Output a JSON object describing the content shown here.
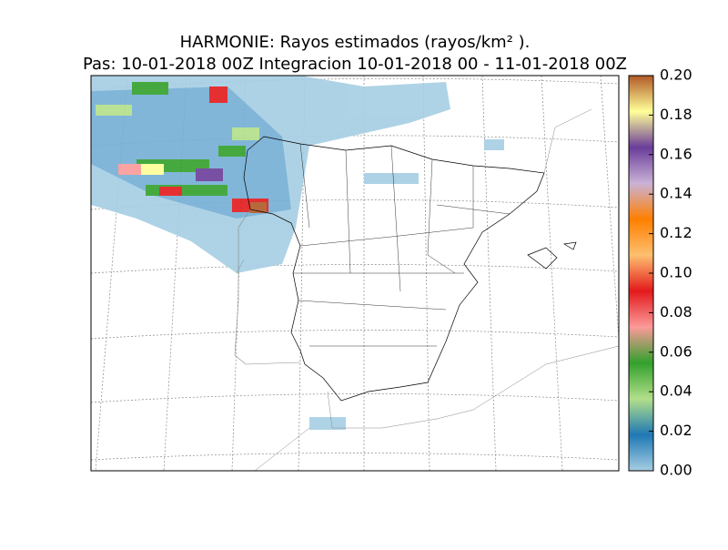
{
  "title": [
    "HARMONIE: Rayos estimados  (rayos/km² ).",
    "Pas: 10-01-2018 00Z Integracion 10-01-2018 00 - 11-01-2018 00Z"
  ],
  "colorbar": {
    "lim": [
      0,
      0.2
    ],
    "ticks": [
      {
        "value": 0,
        "label": "0.00"
      },
      0.02,
      0.04,
      0.06,
      0.08,
      {
        "value": 0.1,
        "label": "0.10"
      },
      0.12,
      0.14,
      0.16,
      0.18,
      {
        "value": 0.2,
        "label": "0.20"
      }
    ],
    "colors": [
      "#a6cee3",
      "#1f78b4",
      "#b2df8a",
      "#33a02c",
      "#fb9a99",
      "#e31a1c",
      "#fdbf6f",
      "#ff7f00",
      "#cab2d6",
      "#6a3d9a",
      "#ffff99",
      "#b15928"
    ]
  }
}
